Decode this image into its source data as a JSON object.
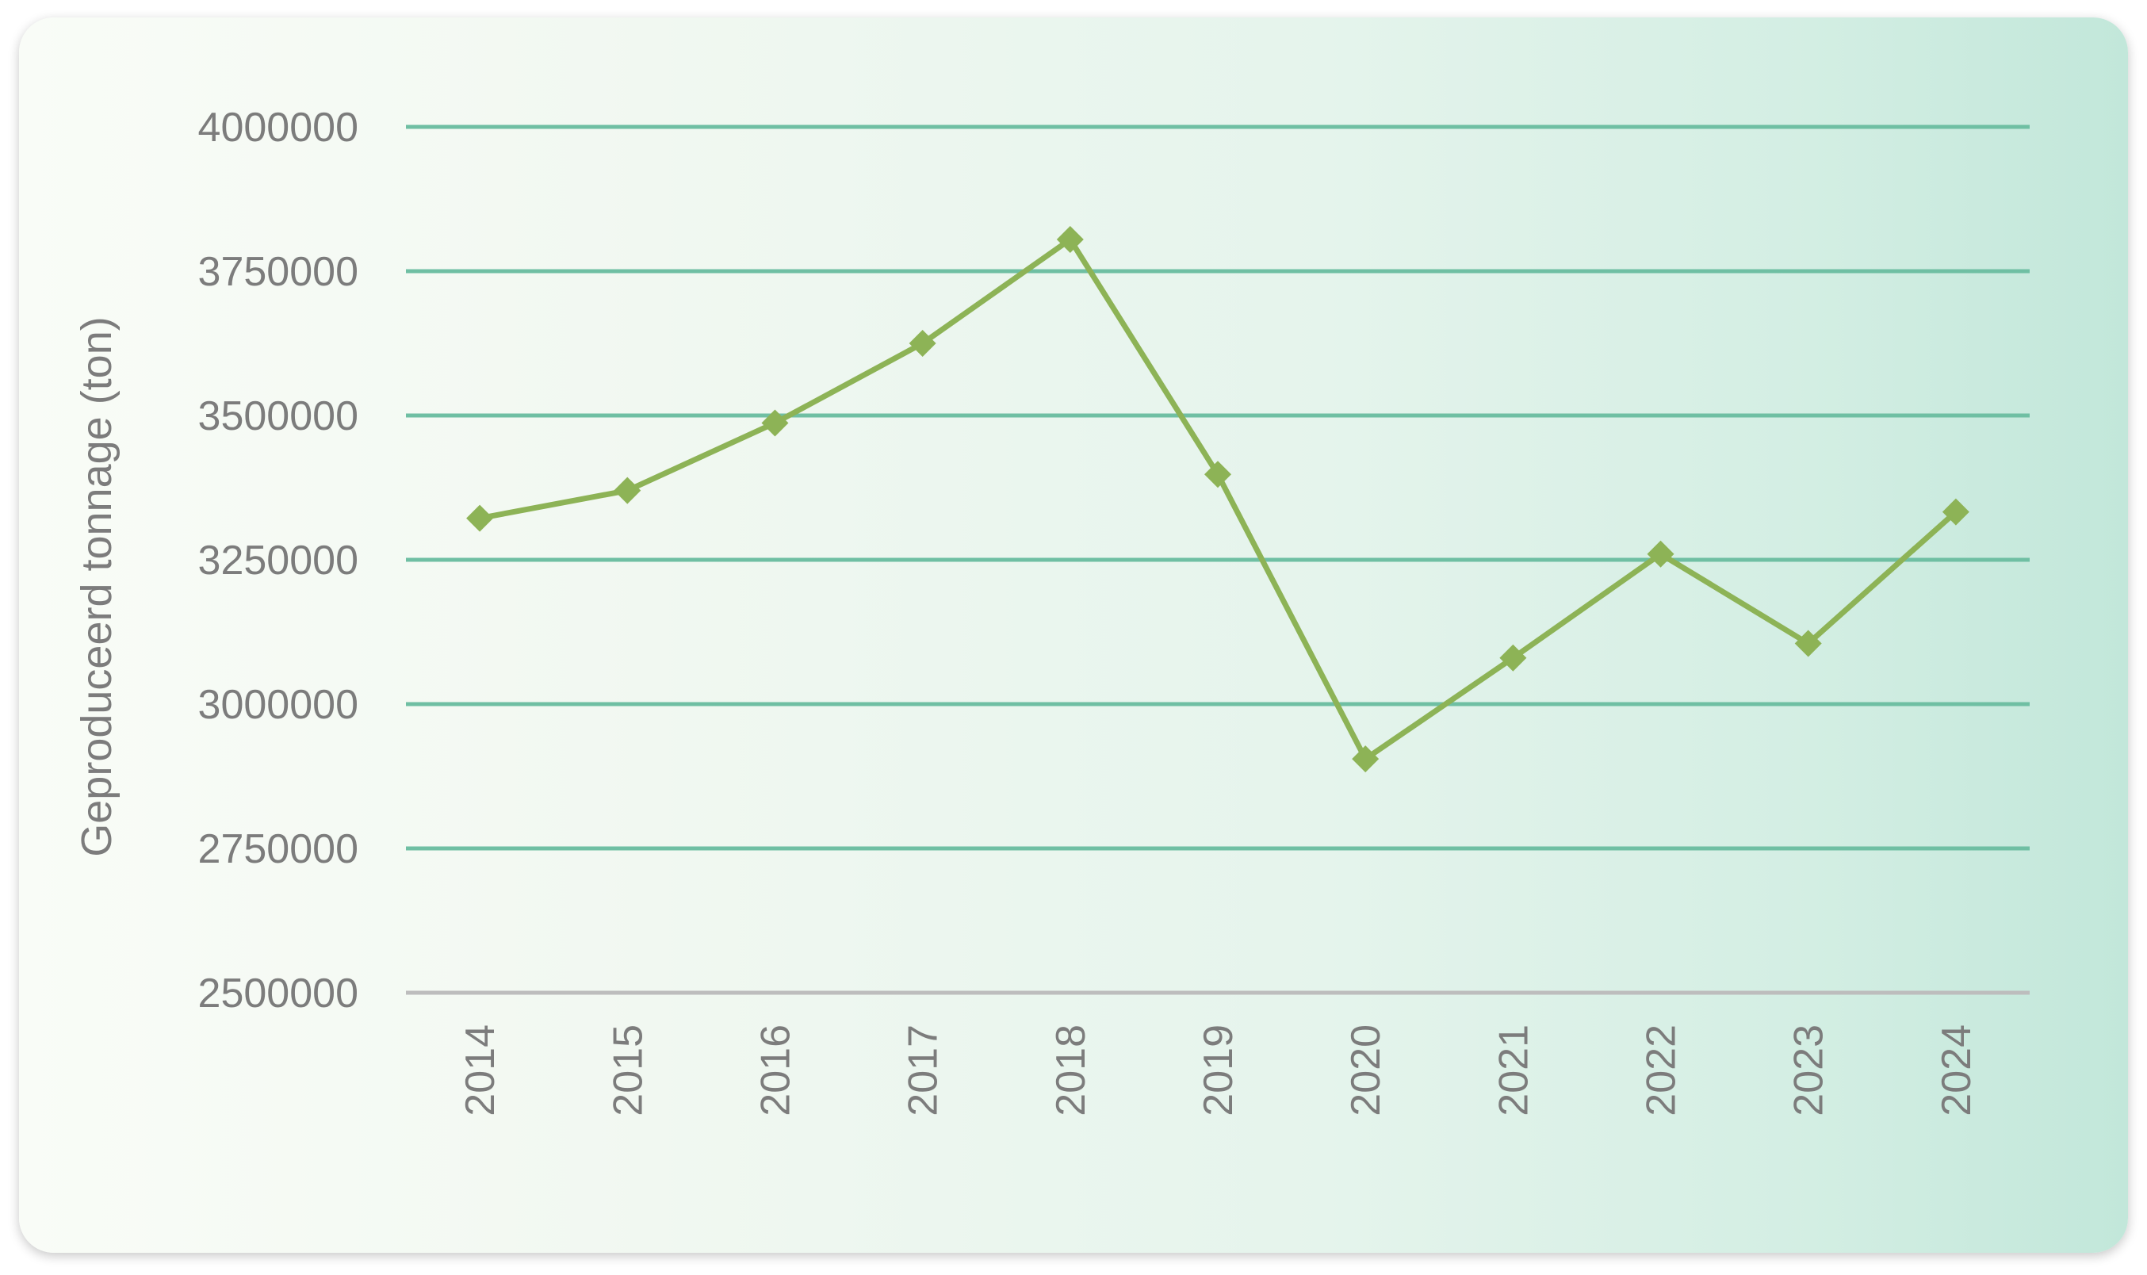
{
  "chart_data": {
    "type": "line",
    "ylabel": "Geproduceerd tonnage (ton)",
    "x": [
      "2014",
      "2015",
      "2016",
      "2017",
      "2018",
      "2019",
      "2020",
      "2021",
      "2022",
      "2023",
      "2024"
    ],
    "series": [
      {
        "values": [
          3322000,
          3370000,
          3487000,
          3625000,
          3805000,
          3398000,
          2905000,
          3080000,
          3260000,
          3105000,
          3333000
        ]
      }
    ],
    "ylim": [
      2500000,
      4000000
    ],
    "yticks": [
      "2500000",
      "2750000",
      "3000000",
      "3250000",
      "3500000",
      "3750000",
      "4000000"
    ],
    "grid": true,
    "legend": "none",
    "colors": {
      "line": "#8db356",
      "grid": "#6fbfa3",
      "baseline": "#bdbdbd",
      "text": "#7c7c7c"
    }
  }
}
